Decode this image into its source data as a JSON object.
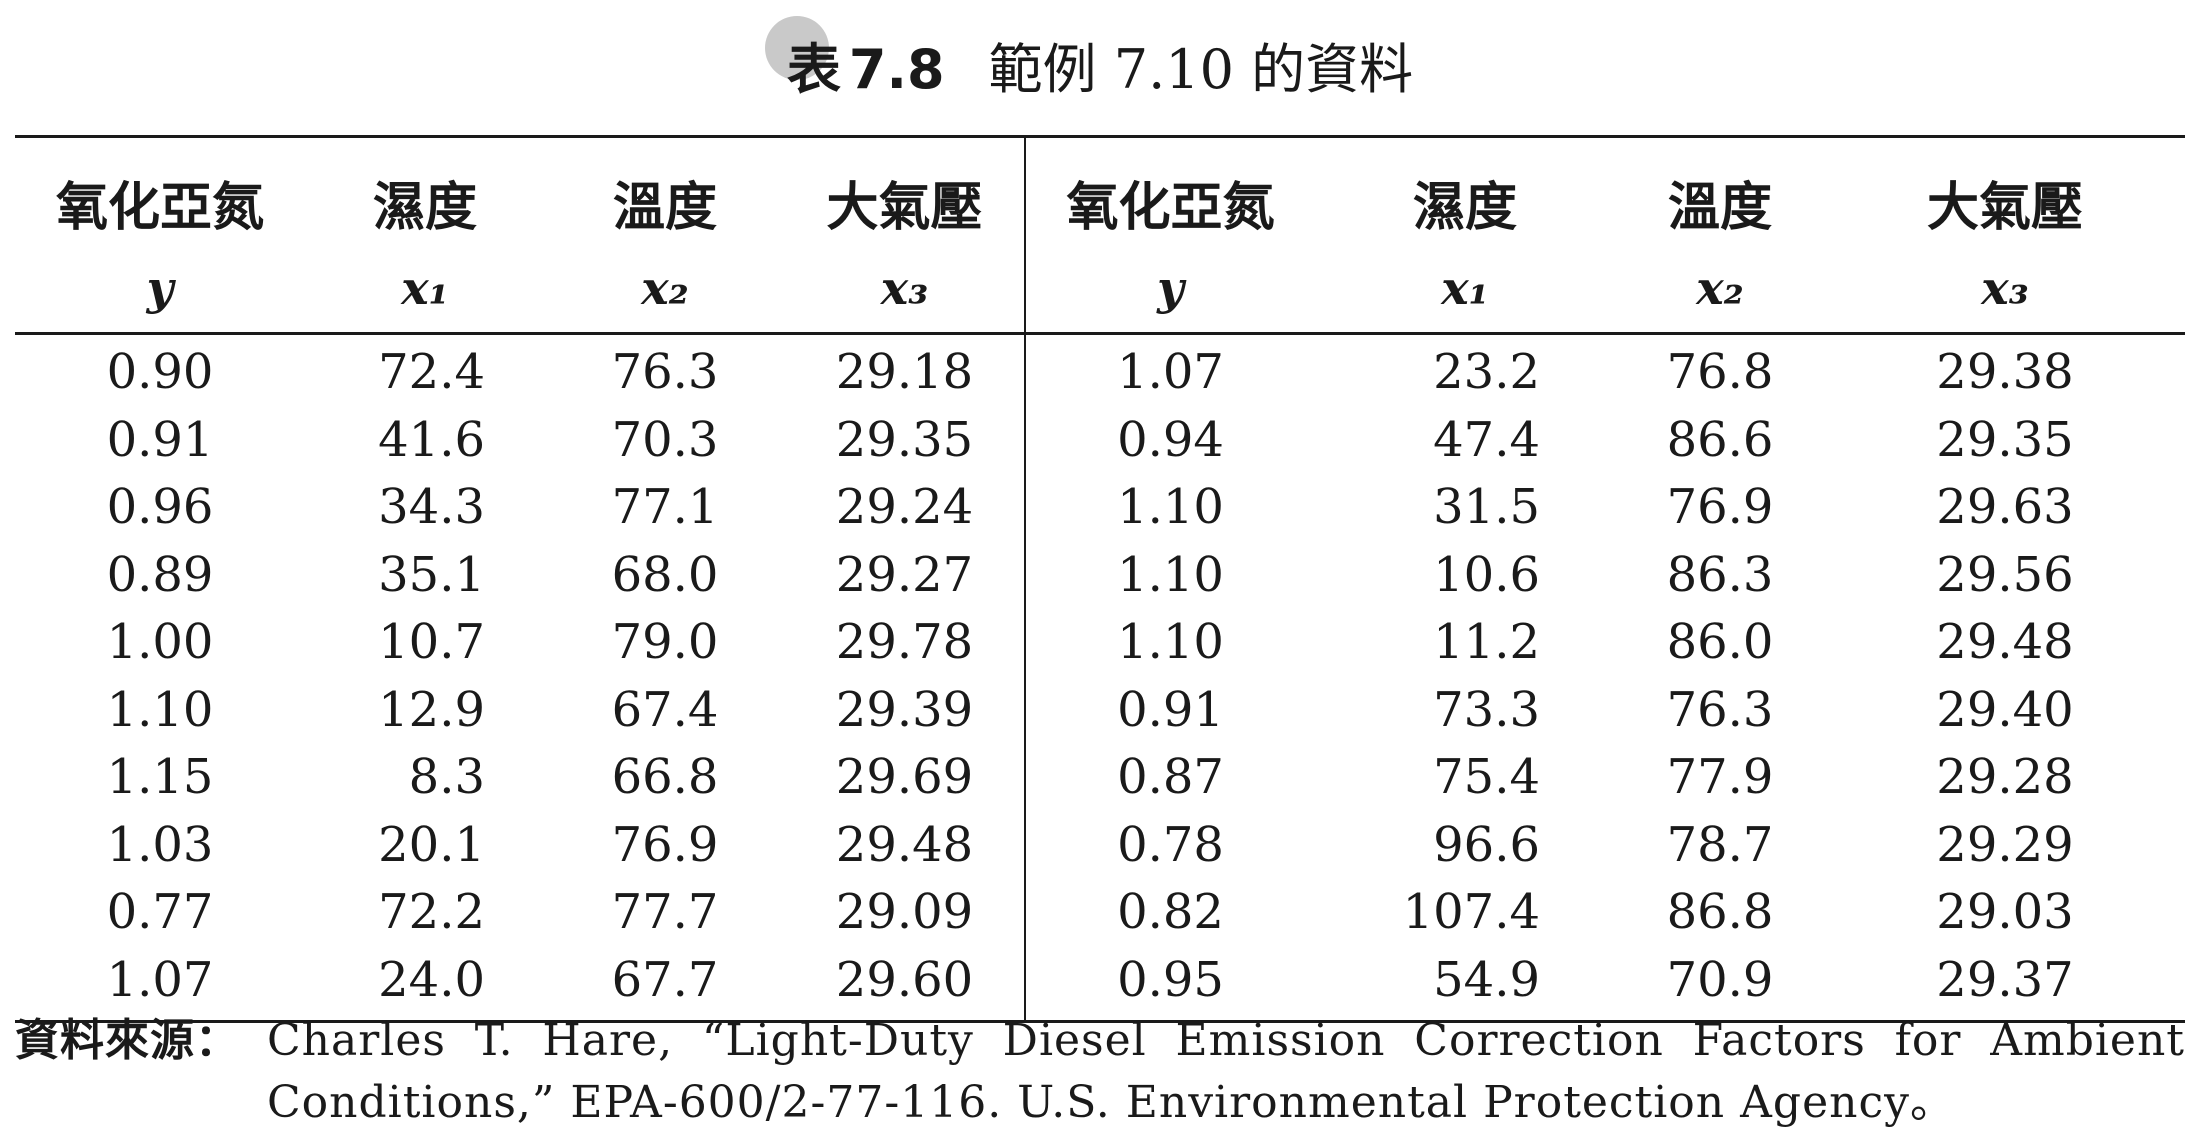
{
  "caption": {
    "label": "表",
    "number": "7.8",
    "text": "範例 7.10 的資料"
  },
  "table": {
    "headers": [
      {
        "name": "氧化亞氮",
        "symbol": "y"
      },
      {
        "name": "濕度",
        "symbol": "x₁"
      },
      {
        "name": "溫度",
        "symbol": "x₂"
      },
      {
        "name": "大氣壓",
        "symbol": "x₃"
      },
      {
        "name": "氧化亞氮",
        "symbol": "y"
      },
      {
        "name": "濕度",
        "symbol": "x₁"
      },
      {
        "name": "溫度",
        "symbol": "x₂"
      },
      {
        "name": "大氣壓",
        "symbol": "x₃"
      }
    ],
    "rows": [
      [
        "0.90",
        "72.4",
        "76.3",
        "29.18",
        "1.07",
        "23.2",
        "76.8",
        "29.38"
      ],
      [
        "0.91",
        "41.6",
        "70.3",
        "29.35",
        "0.94",
        "47.4",
        "86.6",
        "29.35"
      ],
      [
        "0.96",
        "34.3",
        "77.1",
        "29.24",
        "1.10",
        "31.5",
        "76.9",
        "29.63"
      ],
      [
        "0.89",
        "35.1",
        "68.0",
        "29.27",
        "1.10",
        "10.6",
        "86.3",
        "29.56"
      ],
      [
        "1.00",
        "10.7",
        "79.0",
        "29.78",
        "1.10",
        "11.2",
        "86.0",
        "29.48"
      ],
      [
        "1.10",
        "12.9",
        "67.4",
        "29.39",
        "0.91",
        "73.3",
        "76.3",
        "29.40"
      ],
      [
        "1.15",
        "8.3",
        "66.8",
        "29.69",
        "0.87",
        "75.4",
        "77.9",
        "29.28"
      ],
      [
        "1.03",
        "20.1",
        "76.9",
        "29.48",
        "0.78",
        "96.6",
        "78.7",
        "29.29"
      ],
      [
        "0.77",
        "72.2",
        "77.7",
        "29.09",
        "0.82",
        "107.4",
        "86.8",
        "29.03"
      ],
      [
        "1.07",
        "24.0",
        "67.7",
        "29.60",
        "0.95",
        "54.9",
        "70.9",
        "29.37"
      ]
    ]
  },
  "source": {
    "label": "資料來源：",
    "text": "Charles T. Hare, “Light-Duty Diesel Emission Correction Factors for Ambient Conditions,” EPA-600/2-77-116. U.S. Environmental Protection Agency。"
  }
}
